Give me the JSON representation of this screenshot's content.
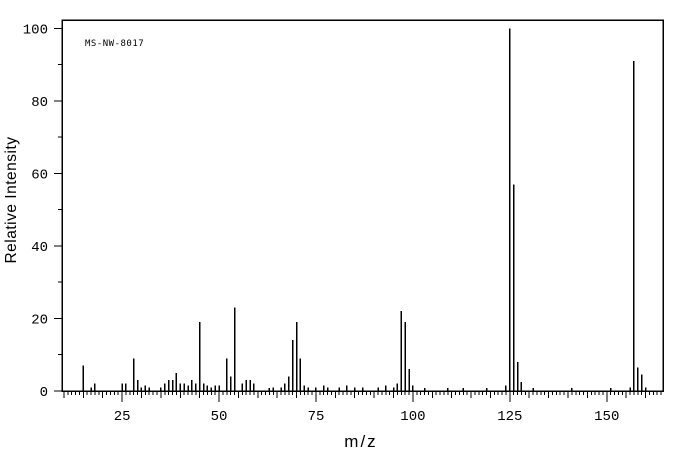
{
  "figure": {
    "watermark": "MS-NW-8017"
  },
  "chart_data": {
    "type": "bar",
    "title": "",
    "annotation": "MS-NW-8017",
    "xlabel": "m/z",
    "ylabel": "Relative Intensity",
    "xlim": [
      9.5,
      164.5
    ],
    "ylim": [
      0,
      102.3
    ],
    "x_major_ticks": [
      25,
      50,
      75,
      100,
      125,
      150
    ],
    "x_medium_tick_step": 5,
    "x_minor_tick_step": 1,
    "y_major_ticks": [
      0,
      20,
      40,
      60,
      80,
      100
    ],
    "y_minor_tick_step": 10,
    "grid": false,
    "legend": null,
    "bar_color": "#000000",
    "axis_color": "#000000",
    "background": "#ffffff",
    "peaks": [
      [
        15,
        7
      ],
      [
        17,
        1
      ],
      [
        18,
        2
      ],
      [
        25,
        2
      ],
      [
        26,
        2
      ],
      [
        28,
        9
      ],
      [
        29,
        3
      ],
      [
        30,
        1
      ],
      [
        31,
        1.5
      ],
      [
        32,
        1
      ],
      [
        35,
        1
      ],
      [
        36,
        2
      ],
      [
        37,
        3
      ],
      [
        38,
        3
      ],
      [
        39,
        5
      ],
      [
        40,
        2
      ],
      [
        41,
        2
      ],
      [
        42,
        1.5
      ],
      [
        43,
        3
      ],
      [
        44,
        2
      ],
      [
        45,
        19
      ],
      [
        46,
        2
      ],
      [
        47,
        1.5
      ],
      [
        48,
        1
      ],
      [
        49,
        1.5
      ],
      [
        50,
        1.5
      ],
      [
        52,
        9
      ],
      [
        53,
        4
      ],
      [
        54,
        23
      ],
      [
        56,
        2
      ],
      [
        57,
        3
      ],
      [
        58,
        3
      ],
      [
        59,
        2
      ],
      [
        63,
        0.8
      ],
      [
        64,
        1
      ],
      [
        66,
        1
      ],
      [
        67,
        2
      ],
      [
        68,
        4
      ],
      [
        69,
        14
      ],
      [
        70,
        19
      ],
      [
        71,
        9
      ],
      [
        72,
        1.5
      ],
      [
        73,
        1
      ],
      [
        75,
        1
      ],
      [
        77,
        1.5
      ],
      [
        78,
        1
      ],
      [
        81,
        1
      ],
      [
        83,
        1.5
      ],
      [
        85,
        1
      ],
      [
        87,
        1
      ],
      [
        91,
        1
      ],
      [
        93,
        1.5
      ],
      [
        95,
        1
      ],
      [
        96,
        2
      ],
      [
        97,
        22
      ],
      [
        98,
        19
      ],
      [
        99,
        6
      ],
      [
        100,
        1.5
      ],
      [
        103,
        0.8
      ],
      [
        109,
        0.8
      ],
      [
        113,
        0.8
      ],
      [
        119,
        0.8
      ],
      [
        124,
        1.5
      ],
      [
        125,
        100
      ],
      [
        126,
        57
      ],
      [
        127,
        8
      ],
      [
        128,
        2.5
      ],
      [
        131,
        0.8
      ],
      [
        141,
        0.8
      ],
      [
        151,
        0.8
      ],
      [
        156,
        1
      ],
      [
        157,
        91
      ],
      [
        158,
        6.5
      ],
      [
        159,
        4.5
      ],
      [
        160,
        1
      ]
    ]
  }
}
